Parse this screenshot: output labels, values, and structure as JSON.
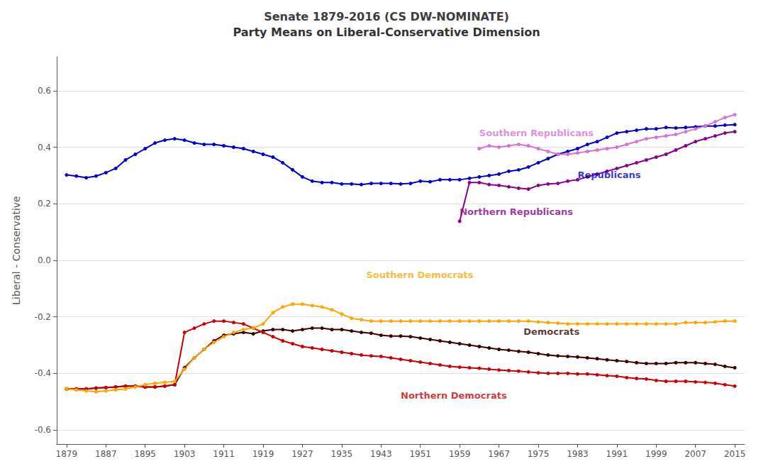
{
  "chart_data": {
    "type": "line",
    "title": "Senate 1879-2016 (CS DW-NOMINATE)",
    "subtitle": "Party Means on Liberal-Conservative Dimension",
    "ylabel": "Liberal - Conservative",
    "xlim": [
      1877,
      2017
    ],
    "ylim": [
      -0.65,
      0.72
    ],
    "xticks": [
      1879,
      1887,
      1895,
      1903,
      1911,
      1919,
      1927,
      1935,
      1943,
      1951,
      1959,
      1967,
      1975,
      1983,
      1991,
      1999,
      2007,
      2015
    ],
    "yticks": [
      -0.6,
      -0.4,
      -0.2,
      {
        "value": 0.0,
        "label": "0.0"
      },
      0.2,
      0.4,
      0.6
    ],
    "grid": true,
    "marker": "circle",
    "x": [
      1879,
      1881,
      1883,
      1885,
      1887,
      1889,
      1891,
      1893,
      1895,
      1897,
      1899,
      1901,
      1903,
      1905,
      1907,
      1909,
      1911,
      1913,
      1915,
      1917,
      1919,
      1921,
      1923,
      1925,
      1927,
      1929,
      1931,
      1933,
      1935,
      1937,
      1939,
      1941,
      1943,
      1945,
      1947,
      1949,
      1951,
      1953,
      1955,
      1957,
      1959,
      1961,
      1963,
      1965,
      1967,
      1969,
      1971,
      1973,
      1975,
      1977,
      1979,
      1981,
      1983,
      1985,
      1987,
      1989,
      1991,
      1993,
      1995,
      1997,
      1999,
      2001,
      2003,
      2005,
      2007,
      2009,
      2011,
      2013,
      2015
    ],
    "series": [
      {
        "name": "Republicans",
        "color": "#0000CD",
        "values": [
          0.302,
          0.298,
          0.292,
          0.298,
          0.31,
          0.325,
          0.355,
          0.375,
          0.395,
          0.415,
          0.425,
          0.43,
          0.425,
          0.415,
          0.41,
          0.41,
          0.405,
          0.4,
          0.395,
          0.385,
          0.375,
          0.365,
          0.345,
          0.32,
          0.295,
          0.28,
          0.275,
          0.275,
          0.27,
          0.27,
          0.268,
          0.272,
          0.272,
          0.272,
          0.27,
          0.272,
          0.28,
          0.278,
          0.285,
          0.285,
          0.285,
          0.29,
          0.295,
          0.3,
          0.305,
          0.315,
          0.32,
          0.33,
          0.345,
          0.36,
          0.375,
          0.385,
          0.395,
          0.41,
          0.42,
          0.435,
          0.45,
          0.455,
          0.46,
          0.465,
          0.465,
          0.47,
          0.468,
          0.47,
          0.472,
          0.475,
          0.475,
          0.478,
          0.48
        ]
      },
      {
        "name": "Northern Republicans",
        "color": "#8B008B",
        "values": [
          null,
          null,
          null,
          null,
          null,
          null,
          null,
          null,
          null,
          null,
          null,
          null,
          null,
          null,
          null,
          null,
          null,
          null,
          null,
          null,
          null,
          null,
          null,
          null,
          null,
          null,
          null,
          null,
          null,
          null,
          null,
          null,
          null,
          null,
          null,
          null,
          null,
          null,
          null,
          null,
          0.138,
          0.275,
          0.275,
          0.268,
          0.265,
          0.26,
          0.255,
          0.252,
          0.265,
          0.27,
          0.272,
          0.28,
          0.285,
          0.295,
          0.305,
          0.315,
          0.325,
          0.335,
          0.345,
          0.355,
          0.365,
          0.375,
          0.39,
          0.405,
          0.42,
          0.43,
          0.44,
          0.45,
          0.455
        ]
      },
      {
        "name": "Southern Republicans",
        "color": "#DA70D6",
        "values": [
          null,
          null,
          null,
          null,
          null,
          null,
          null,
          null,
          null,
          null,
          null,
          null,
          null,
          null,
          null,
          null,
          null,
          null,
          null,
          null,
          null,
          null,
          null,
          null,
          null,
          null,
          null,
          null,
          null,
          null,
          null,
          null,
          null,
          null,
          null,
          null,
          null,
          null,
          null,
          null,
          null,
          null,
          0.395,
          0.405,
          0.4,
          0.405,
          0.41,
          0.405,
          0.395,
          0.385,
          0.375,
          0.375,
          0.38,
          0.385,
          0.39,
          0.395,
          0.4,
          0.41,
          0.42,
          0.43,
          0.435,
          0.44,
          0.445,
          0.455,
          0.465,
          0.475,
          0.49,
          0.505,
          0.515
        ]
      },
      {
        "name": "Democrats",
        "color": "#3D0000",
        "values": [
          -0.455,
          -0.455,
          -0.455,
          -0.452,
          -0.45,
          -0.448,
          -0.445,
          -0.445,
          -0.448,
          -0.448,
          -0.445,
          -0.44,
          -0.38,
          -0.345,
          -0.315,
          -0.285,
          -0.265,
          -0.26,
          -0.255,
          -0.26,
          -0.25,
          -0.245,
          -0.245,
          -0.25,
          -0.245,
          -0.24,
          -0.24,
          -0.245,
          -0.245,
          -0.25,
          -0.255,
          -0.258,
          -0.265,
          -0.268,
          -0.268,
          -0.27,
          -0.275,
          -0.28,
          -0.285,
          -0.29,
          -0.295,
          -0.3,
          -0.305,
          -0.31,
          -0.315,
          -0.318,
          -0.322,
          -0.325,
          -0.33,
          -0.335,
          -0.338,
          -0.34,
          -0.342,
          -0.345,
          -0.348,
          -0.352,
          -0.355,
          -0.358,
          -0.362,
          -0.365,
          -0.365,
          -0.365,
          -0.362,
          -0.362,
          -0.362,
          -0.365,
          -0.368,
          -0.375,
          -0.38
        ]
      },
      {
        "name": "Northern Democrats",
        "color": "#CC0000",
        "values": [
          -0.455,
          -0.455,
          -0.455,
          -0.452,
          -0.45,
          -0.448,
          -0.445,
          -0.445,
          -0.448,
          -0.448,
          -0.445,
          -0.44,
          -0.255,
          -0.24,
          -0.225,
          -0.215,
          -0.215,
          -0.22,
          -0.225,
          -0.24,
          -0.255,
          -0.27,
          -0.285,
          -0.295,
          -0.305,
          -0.31,
          -0.315,
          -0.32,
          -0.325,
          -0.33,
          -0.335,
          -0.338,
          -0.34,
          -0.345,
          -0.35,
          -0.355,
          -0.36,
          -0.365,
          -0.37,
          -0.375,
          -0.378,
          -0.38,
          -0.382,
          -0.385,
          -0.388,
          -0.39,
          -0.392,
          -0.395,
          -0.398,
          -0.4,
          -0.4,
          -0.4,
          -0.402,
          -0.402,
          -0.405,
          -0.408,
          -0.41,
          -0.415,
          -0.418,
          -0.42,
          -0.425,
          -0.428,
          -0.428,
          -0.428,
          -0.43,
          -0.432,
          -0.435,
          -0.44,
          -0.445
        ]
      },
      {
        "name": "Southern Democrats",
        "color": "#FFA500",
        "values": [
          -0.455,
          -0.458,
          -0.462,
          -0.465,
          -0.462,
          -0.458,
          -0.455,
          -0.448,
          -0.44,
          -0.435,
          -0.432,
          -0.428,
          -0.385,
          -0.345,
          -0.315,
          -0.29,
          -0.27,
          -0.255,
          -0.245,
          -0.24,
          -0.225,
          -0.185,
          -0.165,
          -0.155,
          -0.155,
          -0.16,
          -0.165,
          -0.175,
          -0.19,
          -0.205,
          -0.21,
          -0.215,
          -0.215,
          -0.215,
          -0.215,
          -0.215,
          -0.215,
          -0.215,
          -0.215,
          -0.215,
          -0.215,
          -0.215,
          -0.215,
          -0.215,
          -0.215,
          -0.215,
          -0.215,
          -0.215,
          -0.218,
          -0.22,
          -0.222,
          -0.225,
          -0.225,
          -0.225,
          -0.225,
          -0.225,
          -0.225,
          -0.225,
          -0.225,
          -0.225,
          -0.225,
          -0.225,
          -0.225,
          -0.22,
          -0.22,
          -0.22,
          -0.218,
          -0.215,
          -0.215
        ]
      }
    ],
    "annotations": [
      {
        "text": "Southern Republicans",
        "x": 1963,
        "y": 0.435,
        "color": "#DA70D6"
      },
      {
        "text": "Northern Republicans",
        "x": 1959,
        "y": 0.155,
        "color": "#8B008B"
      },
      {
        "text": "Republicans",
        "x": 1983,
        "y": 0.285,
        "color": "#0000CD"
      },
      {
        "text": "Southern Democrats",
        "x": 1940,
        "y": -0.068,
        "color": "#FFA500"
      },
      {
        "text": "Democrats",
        "x": 1972,
        "y": -0.268,
        "color": "#3D0000"
      },
      {
        "text": "Northern Democrats",
        "x": 1947,
        "y": -0.495,
        "color": "#CC0000"
      }
    ]
  }
}
